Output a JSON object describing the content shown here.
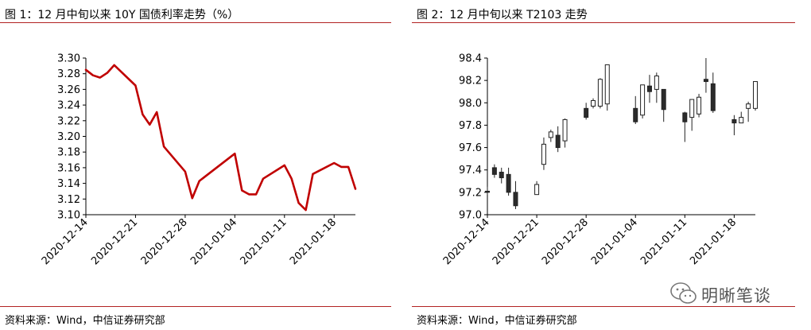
{
  "chart_data": [
    {
      "type": "line",
      "title": "图 1：12 月中旬以来 10Y 国债利率走势（%）",
      "x_ticks": [
        "2020-12-14",
        "2020-12-21",
        "2020-12-28",
        "2021-01-04",
        "2021-01-11",
        "2021-01-18"
      ],
      "ylim": [
        3.1,
        3.3
      ],
      "y_ticks": [
        "3.10",
        "3.12",
        "3.14",
        "3.16",
        "3.18",
        "3.20",
        "3.22",
        "3.24",
        "3.26",
        "3.28",
        "3.30"
      ],
      "line_color": "#c00000",
      "series": [
        {
          "x": [
            "2020-12-14",
            "2020-12-15",
            "2020-12-16",
            "2020-12-17",
            "2020-12-18",
            "2020-12-21",
            "2020-12-22",
            "2020-12-23",
            "2020-12-24",
            "2020-12-25",
            "2020-12-28",
            "2020-12-29",
            "2020-12-30",
            "2021-01-04",
            "2021-01-05",
            "2021-01-06",
            "2021-01-07",
            "2021-01-08",
            "2021-01-11",
            "2021-01-12",
            "2021-01-13",
            "2021-01-14",
            "2021-01-15",
            "2021-01-18",
            "2021-01-19",
            "2021-01-20",
            "2021-01-21"
          ],
          "values": [
            3.285,
            3.278,
            3.275,
            3.281,
            3.291,
            3.265,
            3.228,
            3.215,
            3.231,
            3.187,
            3.155,
            3.121,
            3.143,
            3.178,
            3.131,
            3.126,
            3.126,
            3.146,
            3.163,
            3.146,
            3.115,
            3.106,
            3.152,
            3.166,
            3.161,
            3.161,
            3.133
          ]
        }
      ],
      "source": "资料来源：Wind，中信证券研究部"
    },
    {
      "type": "candlestick",
      "title": "图 2：12 月中旬以来 T2103 走势",
      "x_ticks": [
        "2020-12-14",
        "2020-12-21",
        "2020-12-28",
        "2021-01-04",
        "2021-01-11",
        "2021-01-18"
      ],
      "ylim": [
        97.0,
        98.4
      ],
      "y_ticks": [
        "97.0",
        "97.2",
        "97.4",
        "97.6",
        "97.8",
        "98.0",
        "98.2",
        "98.4"
      ],
      "candles": [
        {
          "date": "2020-12-14",
          "open": 97.21,
          "high": 97.25,
          "low": 97.18,
          "close": 97.2
        },
        {
          "date": "2020-12-15",
          "open": 97.42,
          "high": 97.45,
          "low": 97.33,
          "close": 97.36
        },
        {
          "date": "2020-12-16",
          "open": 97.38,
          "high": 97.42,
          "low": 97.28,
          "close": 97.33
        },
        {
          "date": "2020-12-17",
          "open": 97.36,
          "high": 97.42,
          "low": 97.17,
          "close": 97.2
        },
        {
          "date": "2020-12-18",
          "open": 97.2,
          "high": 97.3,
          "low": 97.05,
          "close": 97.08
        },
        {
          "date": "2020-12-21",
          "open": 97.18,
          "high": 97.3,
          "low": 97.18,
          "close": 97.27
        },
        {
          "date": "2020-12-22",
          "open": 97.45,
          "high": 97.69,
          "low": 97.4,
          "close": 97.63
        },
        {
          "date": "2020-12-23",
          "open": 97.69,
          "high": 97.76,
          "low": 97.65,
          "close": 97.74
        },
        {
          "date": "2020-12-24",
          "open": 97.71,
          "high": 97.79,
          "low": 97.56,
          "close": 97.6
        },
        {
          "date": "2020-12-25",
          "open": 97.66,
          "high": 97.86,
          "low": 97.6,
          "close": 97.85
        },
        {
          "date": "2020-12-28",
          "open": 97.95,
          "high": 98.0,
          "low": 97.85,
          "close": 97.87
        },
        {
          "date": "2020-12-29",
          "open": 97.97,
          "high": 98.04,
          "low": 97.95,
          "close": 98.02
        },
        {
          "date": "2020-12-30",
          "open": 97.97,
          "high": 98.22,
          "low": 97.95,
          "close": 98.21
        },
        {
          "date": "2020-12-31",
          "open": 97.99,
          "high": 98.34,
          "low": 97.93,
          "close": 98.34
        },
        {
          "date": "2021-01-04",
          "open": 97.95,
          "high": 98.06,
          "low": 97.81,
          "close": 97.83
        },
        {
          "date": "2021-01-05",
          "open": 97.89,
          "high": 98.16,
          "low": 97.86,
          "close": 98.16
        },
        {
          "date": "2021-01-06",
          "open": 98.15,
          "high": 98.25,
          "low": 98.0,
          "close": 98.1
        },
        {
          "date": "2021-01-07",
          "open": 98.12,
          "high": 98.27,
          "low": 98.0,
          "close": 98.24
        },
        {
          "date": "2021-01-08",
          "open": 98.12,
          "high": 98.12,
          "low": 97.83,
          "close": 97.94
        },
        {
          "date": "2021-01-11",
          "open": 97.91,
          "high": 97.92,
          "low": 97.65,
          "close": 97.83
        },
        {
          "date": "2021-01-12",
          "open": 97.87,
          "high": 98.03,
          "low": 97.75,
          "close": 98.03
        },
        {
          "date": "2021-01-13",
          "open": 97.9,
          "high": 98.08,
          "low": 97.87,
          "close": 98.05
        },
        {
          "date": "2021-01-14",
          "open": 98.21,
          "high": 98.4,
          "low": 98.09,
          "close": 98.19
        },
        {
          "date": "2021-01-15",
          "open": 98.17,
          "high": 98.27,
          "low": 97.91,
          "close": 97.93
        },
        {
          "date": "2021-01-18",
          "open": 97.85,
          "high": 97.89,
          "low": 97.71,
          "close": 97.82
        },
        {
          "date": "2021-01-19",
          "open": 97.82,
          "high": 97.92,
          "low": 97.82,
          "close": 97.87
        },
        {
          "date": "2021-01-20",
          "open": 97.95,
          "high": 98.01,
          "low": 97.83,
          "close": 97.99
        },
        {
          "date": "2021-01-21",
          "open": 97.95,
          "high": 98.19,
          "low": 97.93,
          "close": 98.19
        }
      ],
      "source": "资料来源：Wind，中信证券研究部"
    }
  ],
  "watermark": {
    "text": "明晰笔谈",
    "icon": "wechat-icon"
  }
}
